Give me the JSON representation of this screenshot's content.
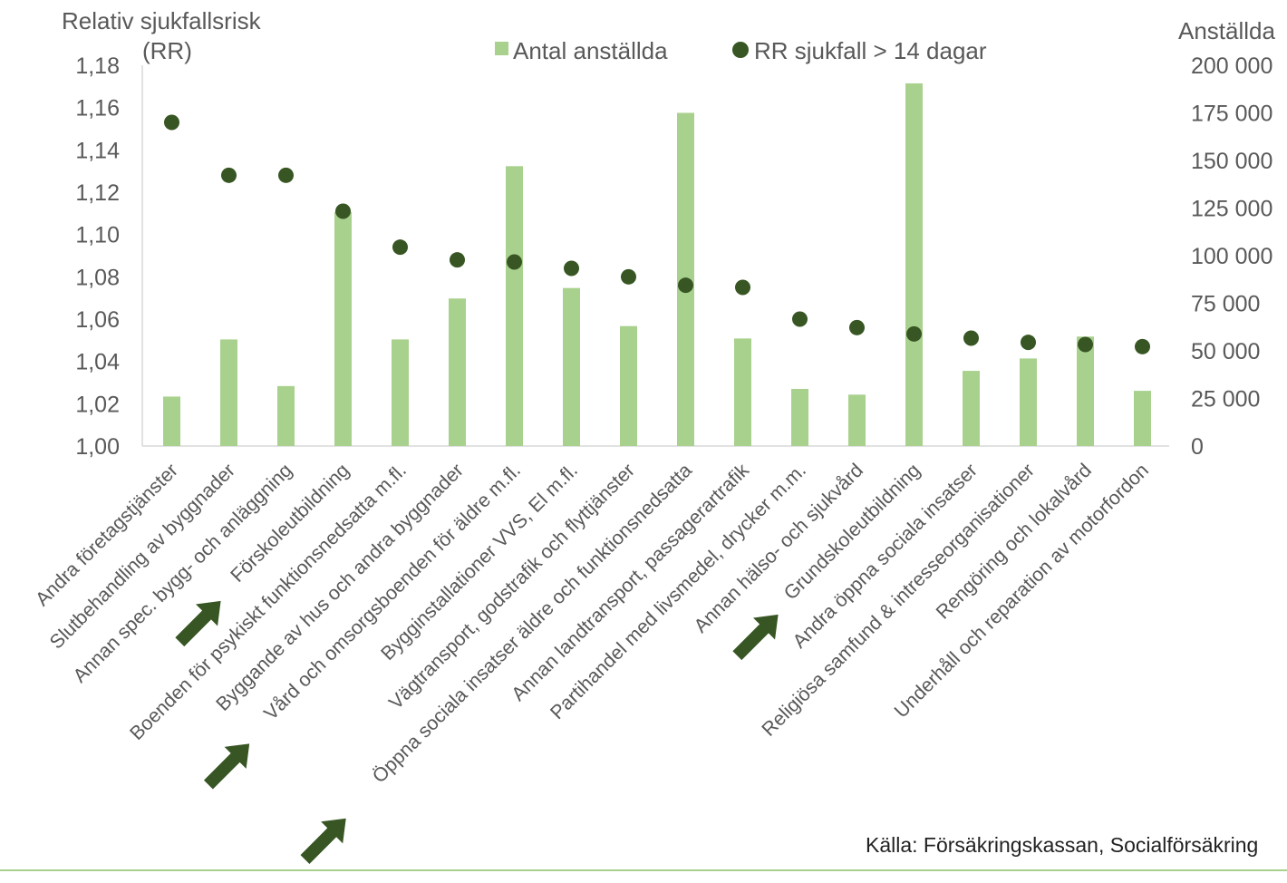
{
  "chart_data": {
    "type": "bar",
    "secondary_type": "scatter",
    "left_axis_label": [
      "Relativ sjukfallsrisk",
      "(RR)"
    ],
    "right_axis_label": "Anställda",
    "left_ylim": [
      1.0,
      1.18
    ],
    "left_ticks": [
      "1,00",
      "1,02",
      "1,04",
      "1,06",
      "1,08",
      "1,10",
      "1,12",
      "1,14",
      "1,16",
      "1,18"
    ],
    "right_ylim": [
      0,
      200000
    ],
    "right_ticks": [
      "0",
      "25 000",
      "50 000",
      "75 000",
      "100 000",
      "125 000",
      "150 000",
      "175 000",
      "200 000"
    ],
    "categories": [
      "Andra företagstjänster",
      "Slutbehandling av byggnader",
      "Annan spec. bygg- och anläggning",
      "Förskoleutbildning",
      "Boenden för psykiskt funktionsnedsatta m.fl.",
      "Byggande av hus och andra byggnader",
      "Vård och omsorgsboenden för äldre m.fl.",
      "Bygginstallationer VVS, El m.fl.",
      "Vägtransport, godstrafik och flyttjänster",
      "Öppna sociala insatser äldre och funktionsnedsatta",
      "Annan landtransport, passagerartrafik",
      "Partihandel med livsmedel, drycker m.m.",
      "Annan hälso- och sjukvård",
      "Grundskoleutbildning",
      "Andra öppna sociala insatser",
      "Religiösa samfund & intresseorganisationer",
      "Rengöring och lokalvård",
      "Underhåll och reparation av motorfordon"
    ],
    "series": [
      {
        "name": "Antal anställda",
        "type": "bar",
        "axis": "right",
        "color": "#a9d18e",
        "values": [
          26000,
          56000,
          31500,
          123000,
          56000,
          77500,
          147000,
          83000,
          63000,
          175000,
          56500,
          30000,
          27000,
          190500,
          39500,
          46000,
          57500,
          29000
        ]
      },
      {
        "name": "RR sjukfall > 14 dagar",
        "type": "scatter",
        "axis": "left",
        "color": "#375623",
        "values": [
          1.153,
          1.128,
          1.128,
          1.111,
          1.094,
          1.088,
          1.087,
          1.084,
          1.08,
          1.076,
          1.075,
          1.06,
          1.056,
          1.053,
          1.051,
          1.049,
          1.048,
          1.047
        ]
      }
    ],
    "highlighted_categories": [
      "Förskoleutbildning",
      "Vård och omsorgsboenden för äldre m.fl.",
      "Öppna sociala insatser äldre och funktionsnedsatta",
      "Grundskoleutbildning"
    ],
    "highlight_color": "#375623",
    "legend_position": "top-center",
    "grid": false
  },
  "source": "Källa: Försäkringskassan, Socialförsäkring"
}
